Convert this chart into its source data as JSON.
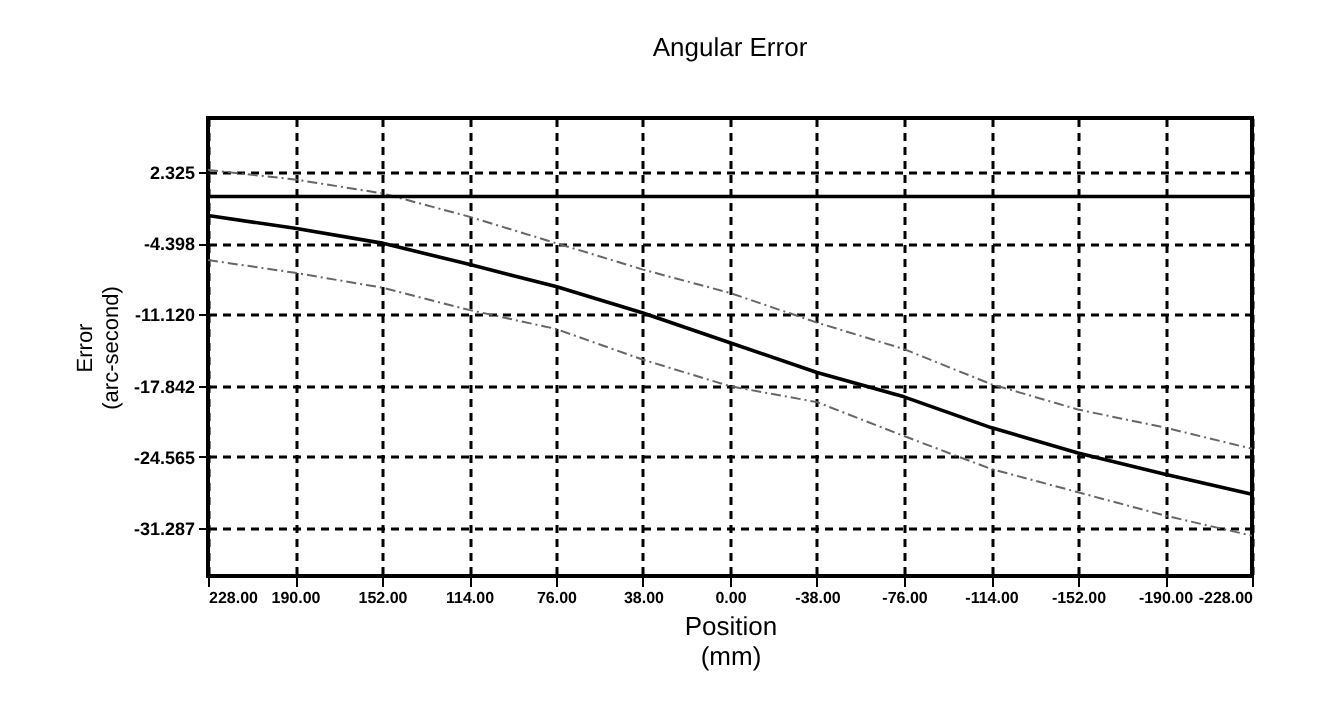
{
  "chart_data": {
    "type": "line",
    "title": "Angular Error",
    "xlabel": "Position\n(mm)",
    "ylabel": "Error\n(arc-second)",
    "x": [
      228,
      190,
      152,
      114,
      76,
      38,
      0,
      -38,
      -76,
      -114,
      -152,
      -190,
      -228
    ],
    "series": [
      {
        "color": "#666666",
        "line_style": "dashed",
        "values": [
          2.5,
          1.6,
          0.3,
          -1.9,
          -4.4,
          -6.9,
          -9.1,
          -11.9,
          -14.4,
          -17.7,
          -20.1,
          -21.8,
          -23.8
        ]
      },
      {
        "color": "#666666",
        "line_style": "dashed",
        "values": [
          -6.0,
          -7.2,
          -8.6,
          -10.7,
          -12.5,
          -15.4,
          -17.9,
          -19.4,
          -22.6,
          -25.7,
          -27.9,
          -30.1,
          -32.0
        ]
      },
      {
        "color": "#000000",
        "line_style": "solid",
        "values": [
          -1.8,
          -3.0,
          -4.4,
          -6.4,
          -8.5,
          -11.0,
          -13.8,
          -16.6,
          -18.9,
          -21.8,
          -24.2,
          -26.2,
          -28.1
        ]
      }
    ],
    "xlim": [
      228,
      -228
    ],
    "xticks": [
      {
        "value": 228,
        "label": "228.00"
      },
      {
        "value": 190,
        "label": "190.00"
      },
      {
        "value": 152,
        "label": "152.00"
      },
      {
        "value": 114,
        "label": "114.00"
      },
      {
        "value": 76,
        "label": "76.00"
      },
      {
        "value": 38,
        "label": "38.00"
      },
      {
        "value": 0,
        "label": "0.00"
      },
      {
        "value": -38,
        "label": "-38.00"
      },
      {
        "value": -76,
        "label": "-76.00"
      },
      {
        "value": -114,
        "label": "-114.00"
      },
      {
        "value": -152,
        "label": "-152.00"
      },
      {
        "value": -190,
        "label": "-190.00"
      },
      {
        "value": -228,
        "label": "-228.00"
      }
    ],
    "ylim": [
      -35.8,
      7.4
    ],
    "yticks": [
      2.325,
      -4.398,
      {
        "value": -11.12,
        "label": "-11.120"
      },
      -17.842,
      -24.565,
      -31.287
    ],
    "ref_lines": [
      {
        "axis": "y",
        "value": 0,
        "color": "#000000",
        "line_style": "solid"
      }
    ],
    "grid": true,
    "marker": "none"
  }
}
